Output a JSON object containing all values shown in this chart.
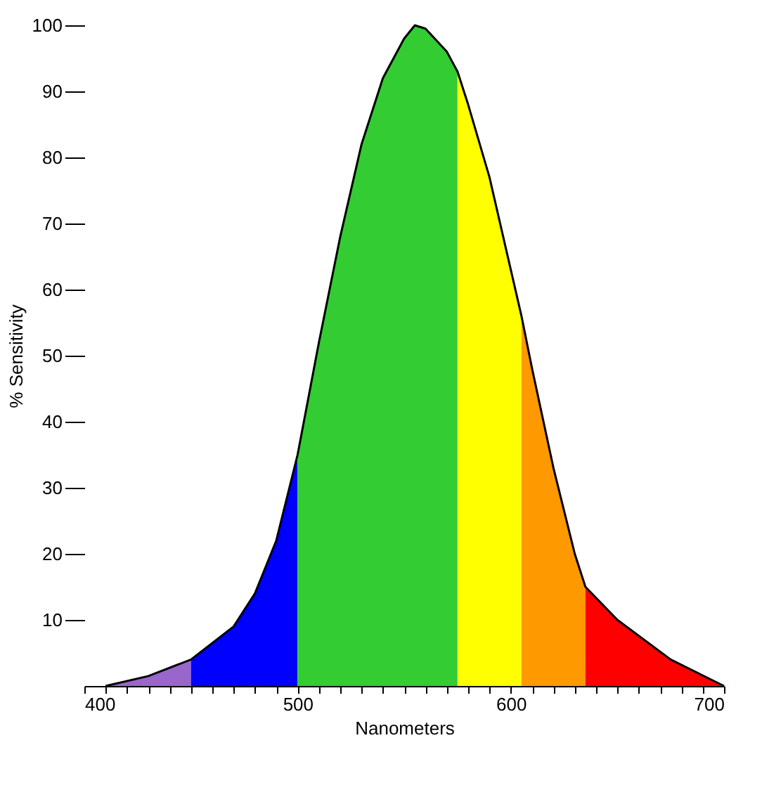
{
  "chart_data": {
    "type": "area",
    "xlabel": "Nanometers",
    "ylabel": "% Sensitivity",
    "xlim": [
      400,
      700
    ],
    "ylim": [
      0,
      100
    ],
    "xticks": [
      400,
      {
        "value": 410,
        "label": null
      },
      {
        "value": 420,
        "label": null
      },
      {
        "value": 430,
        "label": null
      },
      {
        "value": 440,
        "label": null
      },
      {
        "value": 450,
        "label": null
      },
      {
        "value": 460,
        "label": null
      },
      {
        "value": 470,
        "label": null
      },
      {
        "value": 480,
        "label": null
      },
      {
        "value": 490,
        "label": null
      },
      500,
      {
        "value": 510,
        "label": null
      },
      {
        "value": 520,
        "label": null
      },
      {
        "value": 530,
        "label": null
      },
      {
        "value": 540,
        "label": null
      },
      {
        "value": 550,
        "label": null
      },
      {
        "value": 560,
        "label": null
      },
      {
        "value": 570,
        "label": null
      },
      {
        "value": 580,
        "label": null
      },
      {
        "value": 590,
        "label": null
      },
      600,
      {
        "value": 610,
        "label": null
      },
      {
        "value": 620,
        "label": null
      },
      {
        "value": 630,
        "label": null
      },
      {
        "value": 640,
        "label": null
      },
      {
        "value": 650,
        "label": null
      },
      {
        "value": 660,
        "label": null
      },
      {
        "value": 670,
        "label": null
      },
      {
        "value": 680,
        "label": null
      },
      {
        "value": 690,
        "label": null
      },
      700
    ],
    "yticks": [
      10,
      20,
      30,
      40,
      50,
      60,
      70,
      80,
      90,
      100
    ],
    "grid": false,
    "series": [
      {
        "color": "#9966cc",
        "x": [
          410,
          430,
          450
        ],
        "values": [
          0,
          1.5,
          4
        ]
      },
      {
        "color": "#0000ff",
        "x": [
          450,
          470,
          480,
          490,
          500
        ],
        "values": [
          4,
          9,
          14,
          22,
          35
        ]
      },
      {
        "color": "#33cc33",
        "x": [
          500,
          510,
          520,
          530,
          540,
          550,
          555,
          560,
          570,
          575
        ],
        "values": [
          35,
          52,
          68,
          82,
          92,
          98,
          100,
          99.5,
          96,
          93
        ]
      },
      {
        "color": "#ffff00",
        "x": [
          575,
          580,
          590,
          600,
          605
        ],
        "values": [
          93,
          88,
          77,
          63,
          56
        ]
      },
      {
        "color": "#ff9900",
        "x": [
          605,
          610,
          620,
          630,
          635
        ],
        "values": [
          56,
          48,
          33,
          20,
          15
        ]
      },
      {
        "color": "#ff0000",
        "x": [
          635,
          650,
          675,
          700
        ],
        "values": [
          15,
          10,
          4,
          0
        ]
      },
      {
        "type": "line",
        "color": "#000000",
        "x": [
          410,
          430,
          450,
          470,
          480,
          490,
          500,
          510,
          520,
          530,
          540,
          550,
          555,
          560,
          570,
          575,
          580,
          590,
          600,
          605,
          610,
          620,
          630,
          635,
          650,
          675,
          700
        ],
        "values": [
          0,
          1.5,
          4,
          9,
          14,
          22,
          35,
          52,
          68,
          82,
          92,
          98,
          100,
          99.5,
          96,
          93,
          88,
          77,
          63,
          56,
          48,
          33,
          20,
          15,
          10,
          4,
          0
        ]
      }
    ]
  }
}
